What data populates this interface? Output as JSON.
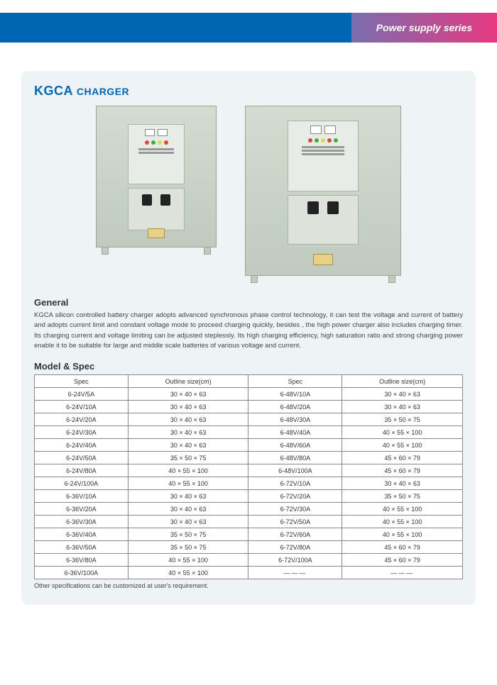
{
  "header": {
    "text": "Power supply series"
  },
  "title": {
    "main": "KGCA",
    "sub": "CHARGER"
  },
  "general": {
    "heading": "General",
    "body": "KGCA silicon controlled battery charger adopts advanced synchronous phase control technology, it can test the voltage and current of battery and adopts current limit and constant voltage mode to proceed charging quickly, besides , the high power charger also includes charging timer. Its charging current and voltage limiting can be adjusted steplessly. Its high charging efficiency, high saturation ratio and strong charging power enable it to be suitable for large and middle scale batteries of various voltage and current."
  },
  "modelspec": {
    "heading": "Model & Spec"
  },
  "table": {
    "headers": [
      "Spec",
      "Outline size(cm)",
      "Spec",
      "Outline size(cm)"
    ],
    "rows": [
      [
        "6-24V/5A",
        "30 × 40 × 63",
        "6-48V/10A",
        "30 × 40 × 63"
      ],
      [
        "6-24V/10A",
        "30 × 40 × 63",
        "6-48V/20A",
        "30 × 40 × 63"
      ],
      [
        "6-24V/20A",
        "30 × 40 × 63",
        "6-48V/30A",
        "35 × 50 × 75"
      ],
      [
        "6-24V/30A",
        "30 × 40 × 63",
        "6-48V/40A",
        "40 × 55 × 100"
      ],
      [
        "6-24V/40A",
        "30 × 40 × 63",
        "6-48V/60A",
        "40 × 55 × 100"
      ],
      [
        "6-24V/50A",
        "35 × 50 × 75",
        "6-48V/80A",
        "45 × 60 × 79"
      ],
      [
        "6-24V/80A",
        "40 × 55 × 100",
        "6-48V/100A",
        "45 × 60 × 79"
      ],
      [
        "6-24V/100A",
        "40 × 55 × 100",
        "6-72V/10A",
        "30 × 40 × 63"
      ],
      [
        "6-36V/10A",
        "30 × 40 × 63",
        "6-72V/20A",
        "35 × 50 × 75"
      ],
      [
        "6-36V/20A",
        "30 × 40 × 63",
        "6-72V/30A",
        "40 × 55 × 100"
      ],
      [
        "6-36V/30A",
        "30 × 40 × 63",
        "6-72V/50A",
        "40 × 55 × 100"
      ],
      [
        "6-36V/40A",
        "35 × 50 × 75",
        "6-72V/60A",
        "40 × 55 × 100"
      ],
      [
        "6-36V/50A",
        "35 × 50 × 75",
        "6-72V/80A",
        "45 × 60 × 79"
      ],
      [
        "6-36V/80A",
        "40 × 55 × 100",
        "6-72V/100A",
        "45 × 60 × 79"
      ],
      [
        "6-36V/100A",
        "40 × 55 × 100",
        "———",
        "———"
      ]
    ]
  },
  "note": "Other specifications can be customized at user's requirement."
}
